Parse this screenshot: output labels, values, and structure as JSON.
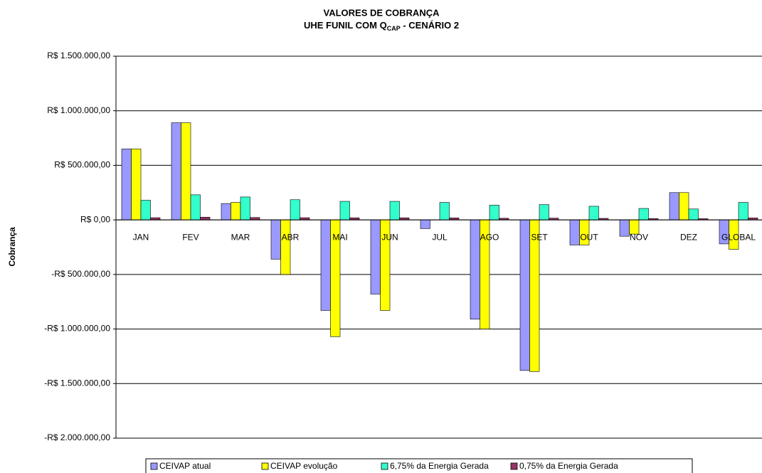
{
  "chart_data": {
    "type": "bar",
    "title": "VALORES DE COBRANÇA",
    "subtitle": {
      "text": "UHE FUNIL COM Q",
      "subscript": "CAP",
      "suffix": " - CENÁRIO 2"
    },
    "y_label": "Cobrança",
    "categories": [
      "JAN",
      "FEV",
      "MAR",
      "ABR",
      "MAI",
      "JUN",
      "JUL",
      "AGO",
      "SET",
      "OUT",
      "NOV",
      "DEZ",
      "GLOBAL"
    ],
    "series": [
      {
        "name": "CEIVAP atual",
        "color": "#9999ff",
        "values": [
          650000,
          890000,
          150000,
          -360000,
          -830000,
          -680000,
          -80000,
          -910000,
          -1380000,
          -230000,
          -150000,
          250000,
          -220000
        ]
      },
      {
        "name": "CEIVAP evolução",
        "color": "#ffff00",
        "values": [
          650000,
          890000,
          160000,
          -500000,
          -1070000,
          -830000,
          0,
          -1000000,
          -1390000,
          -230000,
          -130000,
          250000,
          -270000
        ]
      },
      {
        "name": "6,75% da Energia Gerada",
        "color": "#33ffcc",
        "values": [
          180000,
          230000,
          210000,
          185000,
          170000,
          170000,
          160000,
          135000,
          140000,
          125000,
          105000,
          100000,
          160000
        ]
      },
      {
        "name": "0,75% da Energia Gerada",
        "color": "#993366",
        "values": [
          20000,
          25000,
          22000,
          20000,
          19000,
          19000,
          18000,
          15000,
          16000,
          14000,
          12000,
          11000,
          18000
        ]
      }
    ],
    "ylim": [
      -2000000,
      1500000
    ],
    "yticks": [
      {
        "value": -2000000,
        "label": "-R$ 2.000.000,00"
      },
      {
        "value": -1500000,
        "label": "-R$ 1.500.000,00"
      },
      {
        "value": -1000000,
        "label": "-R$ 1.000.000,00"
      },
      {
        "value": -500000,
        "label": "-R$ 500.000,00"
      },
      {
        "value": 0,
        "label": "R$ 0,00"
      },
      {
        "value": 500000,
        "label": "R$ 500.000,00"
      },
      {
        "value": 1000000,
        "label": "R$ 1.000.000,00"
      },
      {
        "value": 1500000,
        "label": "R$ 1.500.000,00"
      }
    ],
    "grid": true
  }
}
